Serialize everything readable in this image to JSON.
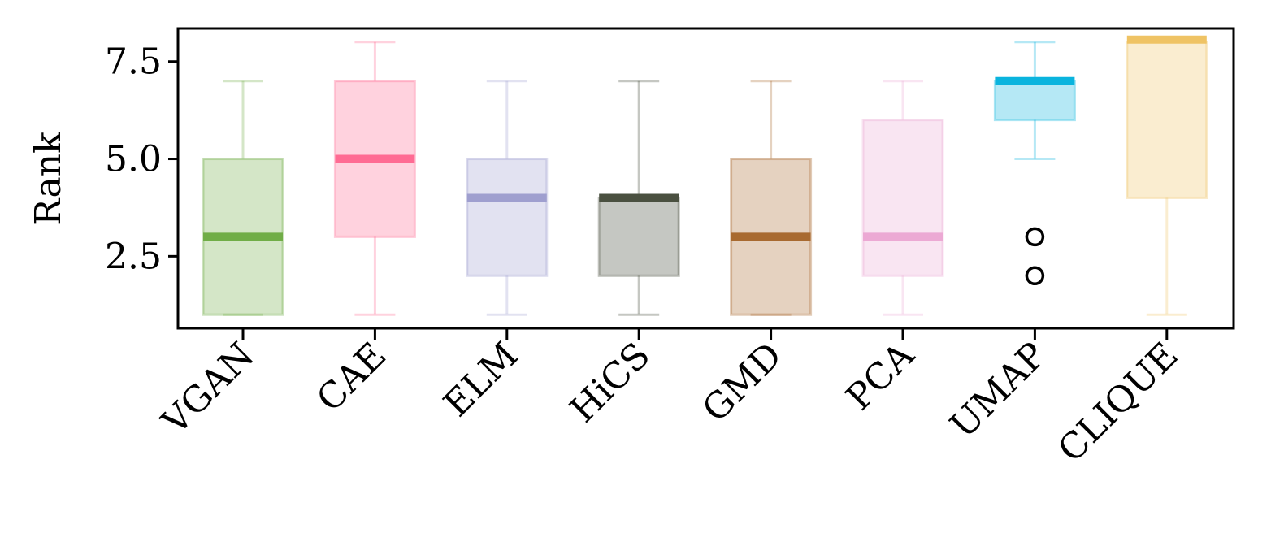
{
  "chart_data": {
    "type": "box",
    "ylabel": "Rank",
    "xlabel": "",
    "ylim": [
      0.65,
      8.35
    ],
    "yticks": [
      2.5,
      5.0,
      7.5
    ],
    "ytick_labels": [
      "2.5",
      "5.0",
      "7.5"
    ],
    "grid": false,
    "categories": [
      "VGAN",
      "CAE",
      "ELM",
      "HiCS",
      "GMD",
      "PCA",
      "UMAP",
      "CLIQUE"
    ],
    "series": [
      {
        "category": "VGAN",
        "whisker_low": 1,
        "q1": 1,
        "median": 3,
        "q3": 5,
        "whisker_high": 7,
        "outliers": [],
        "color": "#70ad47"
      },
      {
        "category": "CAE",
        "whisker_low": 1,
        "q1": 3,
        "median": 5,
        "q3": 7,
        "whisker_high": 8,
        "outliers": [],
        "color": "#ff6b93"
      },
      {
        "category": "ELM",
        "whisker_low": 1,
        "q1": 2,
        "median": 4,
        "q3": 5,
        "whisker_high": 7,
        "outliers": [],
        "color": "#9f9fcf"
      },
      {
        "category": "HiCS",
        "whisker_low": 1,
        "q1": 2,
        "median": 4,
        "q3": 4,
        "whisker_high": 7,
        "outliers": [],
        "color": "#4a5040"
      },
      {
        "category": "GMD",
        "whisker_low": 1,
        "q1": 1,
        "median": 3,
        "q3": 5,
        "whisker_high": 7,
        "outliers": [],
        "color": "#a86a30"
      },
      {
        "category": "PCA",
        "whisker_low": 1,
        "q1": 2,
        "median": 3,
        "q3": 6,
        "whisker_high": 7,
        "outliers": [],
        "color": "#eca9d4"
      },
      {
        "category": "UMAP",
        "whisker_low": 5,
        "q1": 6,
        "median": 7,
        "q3": 7,
        "whisker_high": 8,
        "outliers": [
          2,
          3
        ],
        "color": "#0ab4de"
      },
      {
        "category": "CLIQUE",
        "whisker_low": 1,
        "q1": 4,
        "median": 8,
        "q3": 8,
        "whisker_high": 8,
        "outliers": [],
        "color": "#efc364"
      }
    ]
  }
}
